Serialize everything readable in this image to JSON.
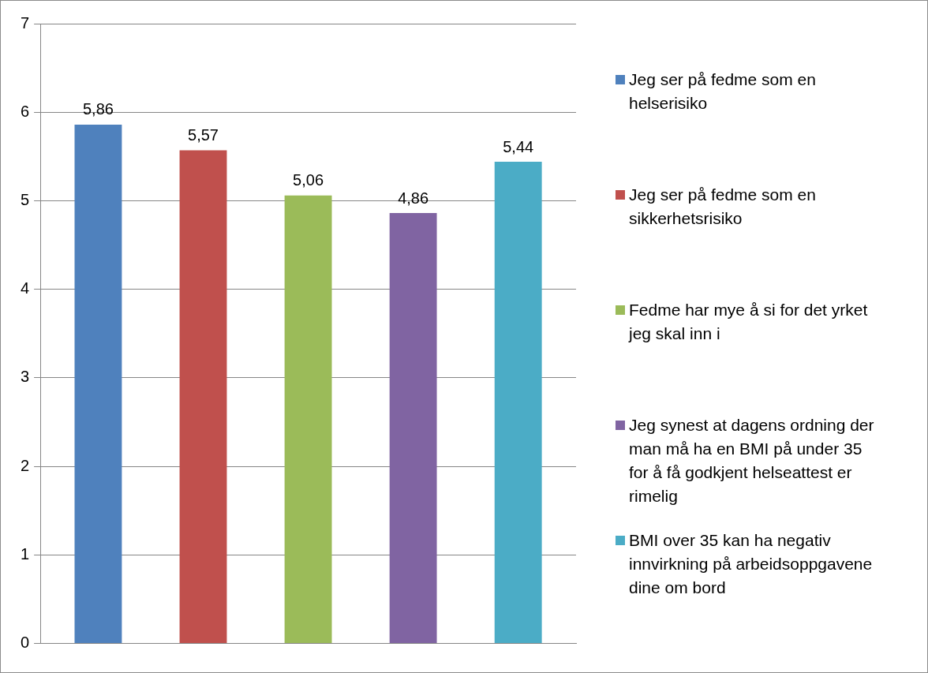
{
  "chart_data": {
    "type": "bar",
    "categories": [
      null
    ],
    "series": [
      {
        "name": "Jeg ser på fedme som en helserisiko",
        "color": "#4f81bd",
        "values": [
          5.86
        ],
        "value_labels": [
          "5,86"
        ]
      },
      {
        "name": "Jeg ser på fedme som en sikkerhetsrisiko",
        "color": "#c0504d",
        "values": [
          5.57
        ],
        "value_labels": [
          "5,57"
        ]
      },
      {
        "name": "Fedme har mye å si for det yrket jeg skal inn i",
        "color": "#9bbb59",
        "values": [
          5.06
        ],
        "value_labels": [
          "5,06"
        ]
      },
      {
        "name": "Jeg synest at dagens ordning der man må ha en BMI på under 35 for å få godkjent helseattest er rimelig",
        "color": "#8064a2",
        "values": [
          4.86
        ],
        "value_labels": [
          "4,86"
        ]
      },
      {
        "name": "BMI over 35 kan ha negativ innvirkning på arbeidsoppgavene dine om bord",
        "color": "#4bacc6",
        "values": [
          5.44
        ],
        "value_labels": [
          "5,44"
        ]
      }
    ],
    "ylim": [
      0,
      7
    ],
    "yticks": [
      0,
      1,
      2,
      3,
      4,
      5,
      6,
      7
    ],
    "grid": "y",
    "legend": "right"
  }
}
